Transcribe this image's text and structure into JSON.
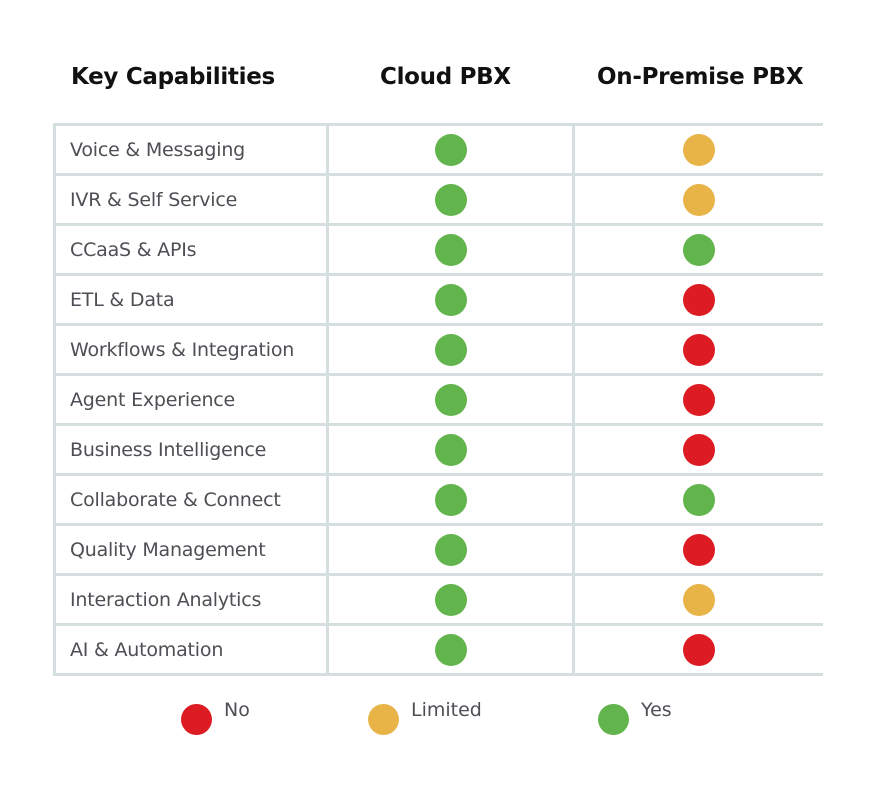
{
  "headers": {
    "capabilities": "Key Capabilities",
    "cloud": "Cloud PBX",
    "onprem": "On-Premise PBX"
  },
  "status_colors": {
    "no": "#dc1c22",
    "limited": "#e8b448",
    "yes": "#62b54c"
  },
  "rows": [
    {
      "label": "Voice & Messaging",
      "cloud": "yes",
      "onprem": "limited"
    },
    {
      "label": "IVR & Self Service",
      "cloud": "yes",
      "onprem": "limited"
    },
    {
      "label": "CCaaS & APIs",
      "cloud": "yes",
      "onprem": "yes"
    },
    {
      "label": "ETL & Data",
      "cloud": "yes",
      "onprem": "no"
    },
    {
      "label": "Workflows & Integration",
      "cloud": "yes",
      "onprem": "no"
    },
    {
      "label": "Agent Experience",
      "cloud": "yes",
      "onprem": "no"
    },
    {
      "label": "Business Intelligence",
      "cloud": "yes",
      "onprem": "no"
    },
    {
      "label": "Collaborate & Connect",
      "cloud": "yes",
      "onprem": "yes"
    },
    {
      "label": "Quality Management",
      "cloud": "yes",
      "onprem": "no"
    },
    {
      "label": "Interaction Analytics",
      "cloud": "yes",
      "onprem": "limited"
    },
    {
      "label": "AI & Automation",
      "cloud": "yes",
      "onprem": "no"
    }
  ],
  "legend": [
    {
      "key": "no",
      "label": "No",
      "icon": "red-dot-icon"
    },
    {
      "key": "limited",
      "label": "Limited",
      "icon": "yellow-dot-icon"
    },
    {
      "key": "yes",
      "label": "Yes",
      "icon": "green-dot-icon"
    }
  ]
}
